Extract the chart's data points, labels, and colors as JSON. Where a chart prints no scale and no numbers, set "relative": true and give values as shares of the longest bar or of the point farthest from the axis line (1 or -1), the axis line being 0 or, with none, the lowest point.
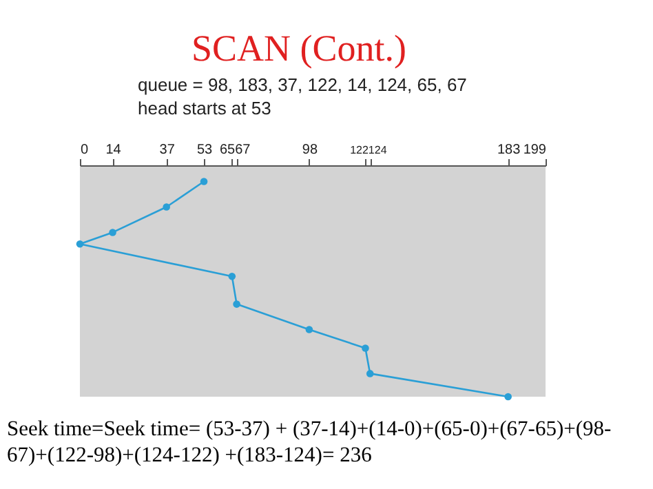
{
  "chart_data": {
    "type": "line",
    "title": "SCAN (Cont.)",
    "x": [
      53,
      37,
      14,
      0,
      65,
      67,
      98,
      122,
      124,
      183
    ],
    "series": [
      {
        "color": "#2a9fd6",
        "values": [
          -0.07,
          -0.18,
          -0.29,
          -0.34,
          -0.48,
          -0.6,
          -0.71,
          -0.79,
          -0.9,
          -1
        ]
      }
    ],
    "relative": true,
    "xlim": [
      0,
      199
    ],
    "xticks": [
      0,
      14,
      37,
      53,
      65,
      67,
      98,
      122,
      124,
      183,
      199
    ],
    "marker": "circle",
    "line_style": "solid",
    "grid": false,
    "legend": false,
    "annotations": [
      "queue = 98, 183, 37, 122, 14, 124, 65, 67",
      "head starts at 53",
      "Seek time=Seek time= (53-37) + (37-14)+(14-0)+(65-0)+(67-65)+(98-\n67)+(122-98)+(124-122) +(183-124)= 236"
    ]
  }
}
